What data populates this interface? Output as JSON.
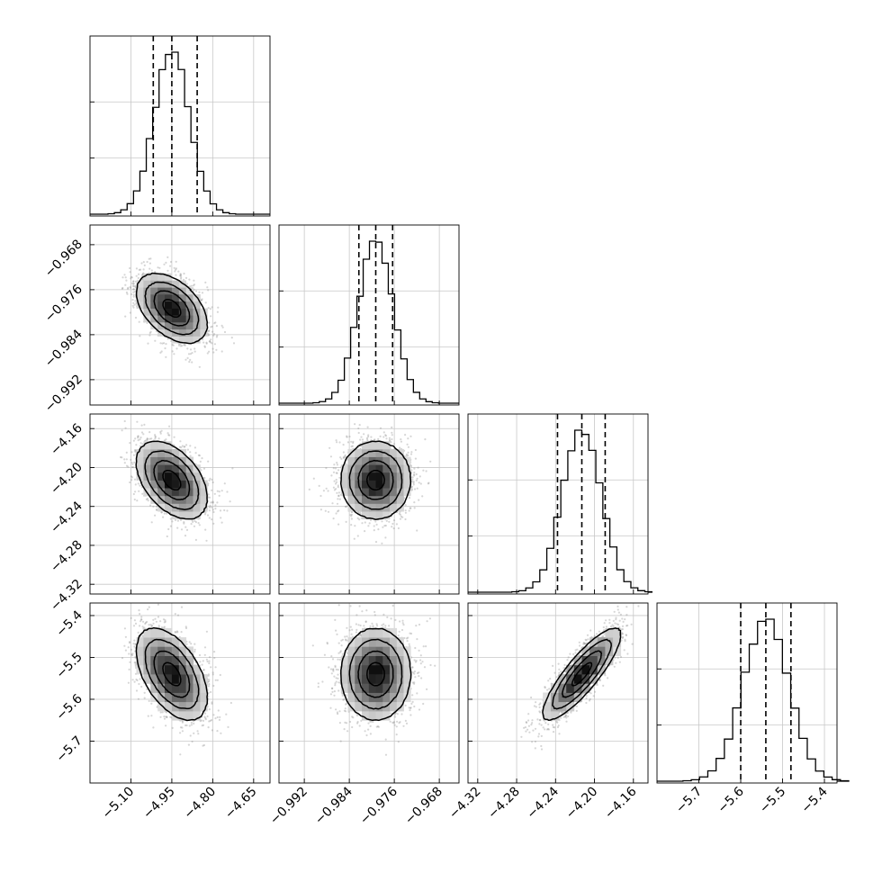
{
  "chart_data": {
    "type": "scatter",
    "plot_kind": "corner",
    "title": "",
    "grid": true,
    "params": [
      {
        "index": 0,
        "range": [
          -5.25,
          -4.59
        ],
        "mean": -4.95,
        "sd": 0.065,
        "quantiles": [
          -5.018,
          -4.95,
          -4.857
        ],
        "ticks": [
          -5.1,
          -4.95,
          -4.8,
          -4.65
        ],
        "tick_labels": [
          "−5.10",
          "−4.95",
          "−4.80",
          "−4.65"
        ]
      },
      {
        "index": 1,
        "range": [
          -0.9965,
          -0.9645
        ],
        "mean": -0.9793,
        "sd": 0.0031,
        "quantiles": [
          -0.9823,
          -0.9793,
          -0.9763
        ],
        "ticks": [
          -0.992,
          -0.984,
          -0.976,
          -0.968
        ],
        "tick_labels": [
          "−0.992",
          "−0.984",
          "−0.976",
          "−0.968"
        ]
      },
      {
        "index": 2,
        "range": [
          -4.33,
          -4.145
        ],
        "mean": -4.213,
        "sd": 0.02,
        "quantiles": [
          -4.238,
          -4.213,
          -4.189
        ],
        "ticks": [
          -4.32,
          -4.28,
          -4.24,
          -4.2,
          -4.16
        ],
        "tick_labels": [
          "−4.32",
          "−4.28",
          "−4.24",
          "−4.20",
          "−4.16"
        ]
      },
      {
        "index": 3,
        "range": [
          -5.8,
          -5.37
        ],
        "mean": -5.54,
        "sd": 0.055,
        "quantiles": [
          -5.6,
          -5.54,
          -5.48
        ],
        "ticks": [
          -5.7,
          -5.6,
          -5.5,
          -5.4
        ],
        "tick_labels": [
          "−5.7",
          "−5.6",
          "−5.5",
          "−5.4"
        ]
      }
    ],
    "correlations": [
      {
        "pair": [
          0,
          1
        ],
        "r": -0.45
      },
      {
        "pair": [
          0,
          2
        ],
        "r": -0.45
      },
      {
        "pair": [
          1,
          2
        ],
        "r": 0.0
      },
      {
        "pair": [
          0,
          3
        ],
        "r": -0.5
      },
      {
        "pair": [
          1,
          3
        ],
        "r": 0.0
      },
      {
        "pair": [
          2,
          3
        ],
        "r": 0.85
      }
    ],
    "histogram_bins": 20,
    "colors": {
      "hist": "#000000",
      "scatter": "#8a8a8a",
      "density_dark": "#000000",
      "grid": "#c8c8c8"
    }
  }
}
